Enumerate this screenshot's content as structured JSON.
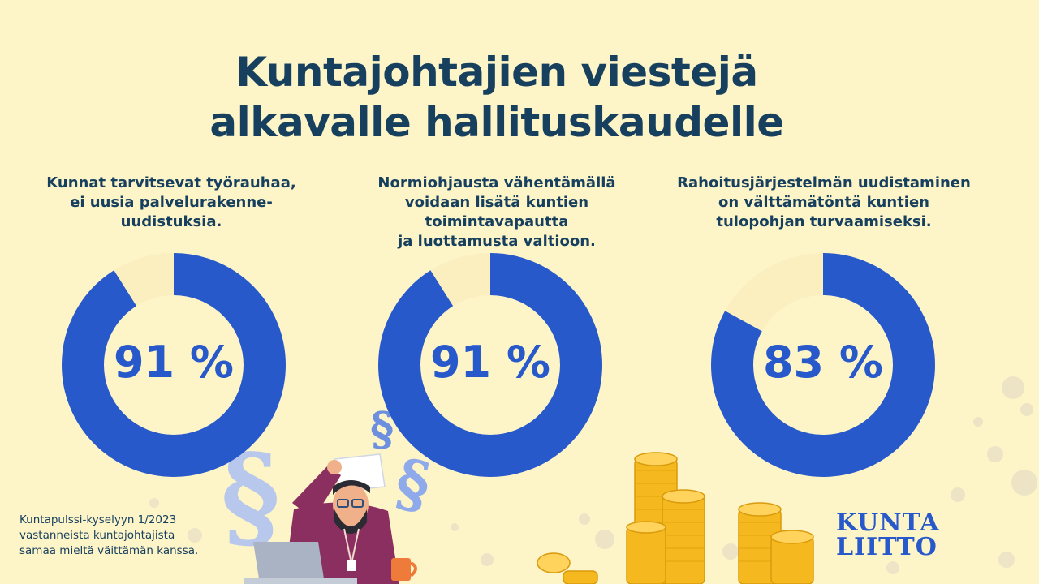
{
  "title": {
    "line1": "Kuntajohtajien viestejä",
    "line2": "alkavalle hallituskaudelle"
  },
  "statements": [
    {
      "lines": [
        "Kunnat tarvitsevat työrauhaa,",
        "ei uusia palvelurakenne-",
        "uudistuksia."
      ],
      "percent": 91,
      "label": "91 %"
    },
    {
      "lines": [
        "Normiohjausta vähentämällä",
        "voidaan lisätä kuntien toimintavapautta",
        "ja luottamusta valtioon."
      ],
      "percent": 91,
      "label": "91 %"
    },
    {
      "lines": [
        "Rahoitusjärjestelmän uudistaminen",
        "on välttämätöntä kuntien",
        "tulopohjan turvaamiseksi."
      ],
      "percent": 83,
      "label": "83 %"
    }
  ],
  "footnote": {
    "line1": "Kuntapulssi-kyselyyn 1/2023",
    "line2": "vastanneista kuntajohtajista",
    "line3": "samaa mieltä väittämän kanssa."
  },
  "logo": {
    "line1": "KUNTA",
    "line2": "LIITTO"
  },
  "colors": {
    "background": "#fdf4c8",
    "accent_blue": "#2759cb",
    "remainder": "#fbefc0",
    "navy": "#17405f"
  },
  "icons": [
    "paragraph-sign-icon",
    "coin-stack-icon",
    "worried-man-illustration",
    "laptop-icon",
    "mug-icon"
  ]
}
